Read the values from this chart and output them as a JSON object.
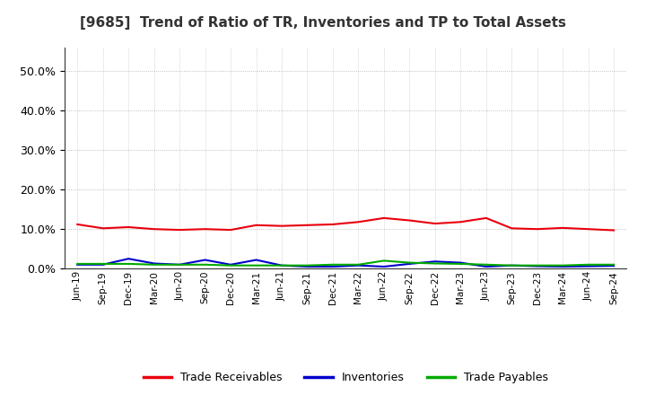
{
  "title": "[9685]  Trend of Ratio of TR, Inventories and TP to Total Assets",
  "x_labels": [
    "Jun-19",
    "Sep-19",
    "Dec-19",
    "Mar-20",
    "Jun-20",
    "Sep-20",
    "Dec-20",
    "Mar-21",
    "Jun-21",
    "Sep-21",
    "Dec-21",
    "Mar-22",
    "Jun-22",
    "Sep-22",
    "Dec-22",
    "Mar-23",
    "Jun-23",
    "Sep-23",
    "Dec-23",
    "Mar-24",
    "Jun-24",
    "Sep-24"
  ],
  "trade_receivables": [
    0.112,
    0.102,
    0.105,
    0.1,
    0.098,
    0.1,
    0.098,
    0.11,
    0.108,
    0.11,
    0.112,
    0.118,
    0.128,
    0.122,
    0.114,
    0.118,
    0.128,
    0.102,
    0.1,
    0.103,
    0.1,
    0.097
  ],
  "inventories": [
    0.01,
    0.01,
    0.025,
    0.013,
    0.01,
    0.022,
    0.01,
    0.022,
    0.008,
    0.005,
    0.005,
    0.008,
    0.005,
    0.012,
    0.018,
    0.015,
    0.005,
    0.008,
    0.006,
    0.005,
    0.006,
    0.007
  ],
  "trade_payables": [
    0.012,
    0.012,
    0.012,
    0.01,
    0.01,
    0.01,
    0.008,
    0.008,
    0.008,
    0.008,
    0.01,
    0.01,
    0.02,
    0.015,
    0.013,
    0.012,
    0.01,
    0.008,
    0.008,
    0.008,
    0.01,
    0.01
  ],
  "tr_color": "#e8000d",
  "inv_color": "#0000cc",
  "tp_color": "#00aa00",
  "legend_labels": [
    "Trade Receivables",
    "Inventories",
    "Trade Payables"
  ],
  "ylim": [
    0.0,
    0.56
  ],
  "yticks": [
    0.0,
    0.1,
    0.2,
    0.3,
    0.4,
    0.5
  ],
  "title_color": "#333333",
  "background_color": "#ffffff",
  "grid_color": "#999999"
}
